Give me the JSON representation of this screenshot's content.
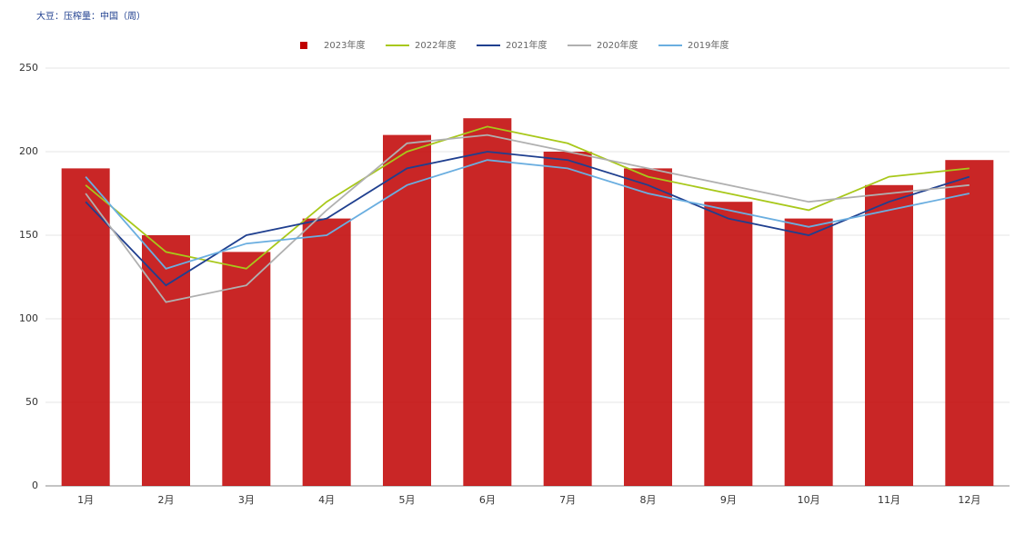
{
  "chart_data": {
    "type": "combo",
    "title": "大豆：压榨量：中国（周）",
    "categories": [
      "1月",
      "2月",
      "3月",
      "4月",
      "5月",
      "6月",
      "7月",
      "8月",
      "9月",
      "10月",
      "11月",
      "12月"
    ],
    "series": [
      {
        "name": "2023年度",
        "type": "bar",
        "color": "#c00000",
        "values": [
          190,
          150,
          140,
          160,
          210,
          220,
          200,
          190,
          170,
          160,
          180,
          195
        ]
      },
      {
        "name": "2022年度",
        "type": "line",
        "color": "#a8c81a",
        "values": [
          180,
          140,
          130,
          170,
          200,
          215,
          205,
          185,
          175,
          165,
          185,
          190
        ]
      },
      {
        "name": "2021年度",
        "type": "line",
        "color": "#1f3f8f",
        "values": [
          170,
          120,
          150,
          160,
          190,
          200,
          195,
          180,
          160,
          150,
          170,
          185
        ]
      },
      {
        "name": "2020年度",
        "type": "line",
        "color": "#b0b0b0",
        "values": [
          175,
          110,
          120,
          165,
          205,
          210,
          200,
          190,
          180,
          170,
          175,
          180
        ]
      },
      {
        "name": "2019年度",
        "type": "line",
        "color": "#6aaee0",
        "values": [
          185,
          130,
          145,
          150,
          180,
          195,
          190,
          175,
          165,
          155,
          165,
          175
        ]
      }
    ],
    "ylim": [
      0,
      250
    ],
    "yticks": [
      0,
      50,
      100,
      150,
      200,
      250
    ],
    "grid": true
  }
}
